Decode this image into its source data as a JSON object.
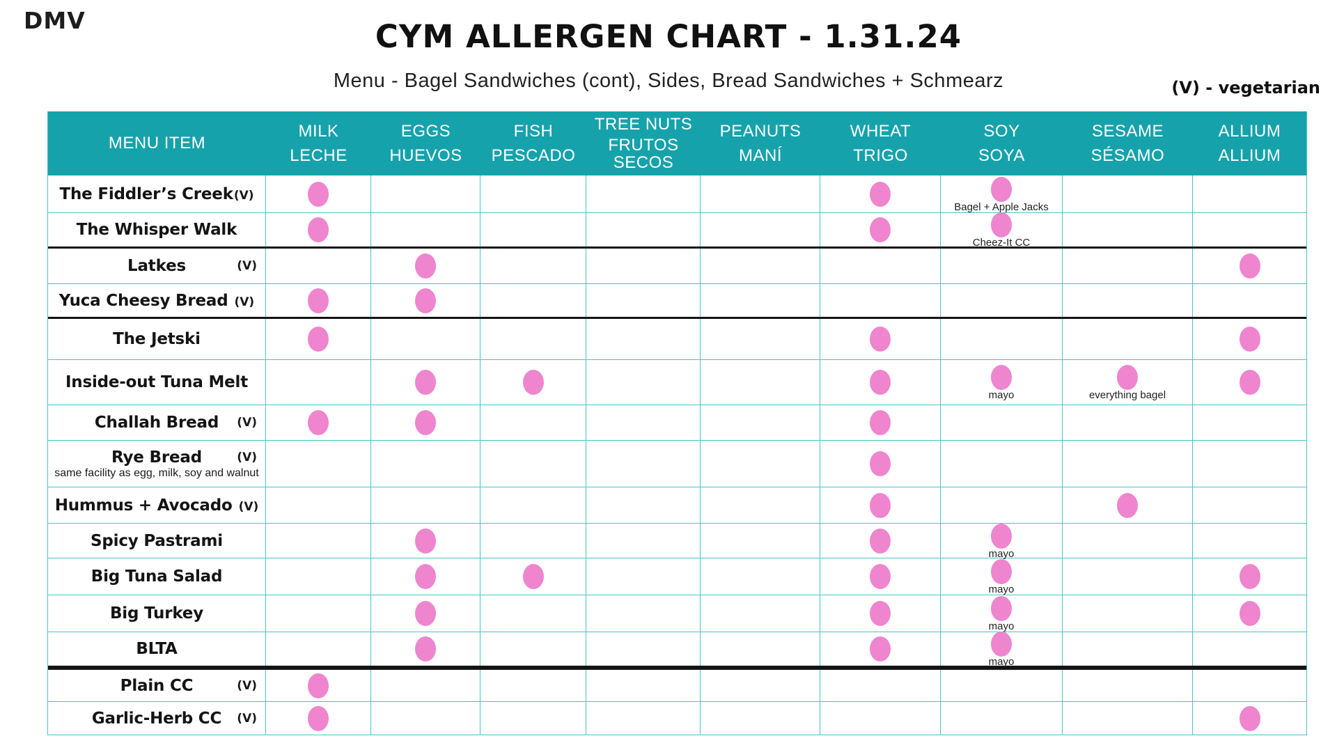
{
  "page": {
    "corner_label": "DMV",
    "title": "CYM ALLERGEN CHART - 1.31.24",
    "subtitle": "Menu - Bagel Sandwiches (cont), Sides, Bread Sandwiches + Schmearz",
    "legend": "(V) - vegetarian"
  },
  "colors": {
    "header_bg": "#16a2ab",
    "grid_line": "#45c6c8",
    "dot": "#ee85ce",
    "divider": "#141414"
  },
  "chart_data": {
    "type": "table",
    "title": "CYM ALLERGEN CHART - 1.31.24",
    "subtitle": "Menu - Bagel Sandwiches (cont), Sides, Bread Sandwiches + Schmearz",
    "menu_header": "MENU ITEM",
    "allergens": [
      {
        "key": "milk",
        "en": "MILK",
        "es": "LECHE"
      },
      {
        "key": "eggs",
        "en": "EGGS",
        "es": "HUEVOS"
      },
      {
        "key": "fish",
        "en": "FISH",
        "es": "PESCADO"
      },
      {
        "key": "tree_nuts",
        "en": "TREE NUTS",
        "es": "FRUTOS SECOS"
      },
      {
        "key": "peanuts",
        "en": "PEANUTS",
        "es": "MANÍ"
      },
      {
        "key": "wheat",
        "en": "WHEAT",
        "es": "TRIGO"
      },
      {
        "key": "soy",
        "en": "SOY",
        "es": "SOYA"
      },
      {
        "key": "sesame",
        "en": "SESAME",
        "es": "SÉSAMO"
      },
      {
        "key": "allium",
        "en": "ALLIUM",
        "es": "ALLIUM"
      }
    ],
    "rows": [
      {
        "name": "The Fiddler’s Creek",
        "veg": "(V)",
        "veg_style": "tight",
        "subnote": "",
        "dots": [
          "milk",
          "wheat",
          "soy"
        ],
        "cell_notes": {
          "soy": "Bagel + Apple Jacks"
        },
        "divider_after": "thin"
      },
      {
        "name": "The Whisper Walk",
        "veg": "",
        "veg_style": "",
        "subnote": "",
        "dots": [
          "milk",
          "wheat",
          "soy"
        ],
        "cell_notes": {
          "soy": "Cheez-It CC"
        },
        "divider_after": "black"
      },
      {
        "name": "Latkes",
        "veg": "(V)",
        "veg_style": "right",
        "subnote": "",
        "dots": [
          "eggs",
          "allium"
        ],
        "cell_notes": {},
        "divider_after": "thin"
      },
      {
        "name": "Yuca Cheesy Bread",
        "veg": "(V)",
        "veg_style": "inline",
        "subnote": "",
        "dots": [
          "milk",
          "eggs"
        ],
        "cell_notes": {},
        "divider_after": "black"
      },
      {
        "name": "The Jetski",
        "veg": "",
        "veg_style": "",
        "subnote": "",
        "dots": [
          "milk",
          "wheat",
          "allium"
        ],
        "cell_notes": {},
        "divider_after": "thin"
      },
      {
        "name": "Inside-out Tuna Melt",
        "veg": "",
        "veg_style": "",
        "subnote": "",
        "dots": [
          "eggs",
          "fish",
          "wheat",
          "soy",
          "sesame",
          "allium"
        ],
        "cell_notes": {
          "soy": "mayo",
          "sesame": "everything bagel"
        },
        "divider_after": "thin"
      },
      {
        "name": "Challah Bread",
        "veg": "(V)",
        "veg_style": "right",
        "subnote": "",
        "dots": [
          "milk",
          "eggs",
          "wheat"
        ],
        "cell_notes": {},
        "divider_after": "thin"
      },
      {
        "name": "Rye Bread",
        "veg": "(V)",
        "veg_style": "right",
        "subnote": "same facility as egg, milk, soy and walnut",
        "dots": [
          "wheat"
        ],
        "cell_notes": {},
        "divider_after": "thin"
      },
      {
        "name": "Hummus + Avocado",
        "veg": "(V)",
        "veg_style": "inline",
        "subnote": "",
        "dots": [
          "wheat",
          "sesame"
        ],
        "cell_notes": {},
        "divider_after": "thin"
      },
      {
        "name": "Spicy Pastrami",
        "veg": "",
        "veg_style": "",
        "subnote": "",
        "dots": [
          "eggs",
          "wheat",
          "soy"
        ],
        "cell_notes": {
          "soy": "mayo"
        },
        "divider_after": "thin"
      },
      {
        "name": "Big Tuna Salad",
        "veg": "",
        "veg_style": "",
        "subnote": "",
        "dots": [
          "eggs",
          "fish",
          "wheat",
          "soy",
          "allium"
        ],
        "cell_notes": {
          "soy": "mayo"
        },
        "divider_after": "thin"
      },
      {
        "name": "Big Turkey",
        "veg": "",
        "veg_style": "",
        "subnote": "",
        "dots": [
          "eggs",
          "wheat",
          "soy",
          "allium"
        ],
        "cell_notes": {
          "soy": "mayo"
        },
        "divider_after": "thin"
      },
      {
        "name": "BLTA",
        "veg": "",
        "veg_style": "",
        "subnote": "",
        "dots": [
          "eggs",
          "wheat",
          "soy"
        ],
        "cell_notes": {
          "soy": "mayo"
        },
        "divider_after": "heavy"
      },
      {
        "name": "Plain CC",
        "veg": "(V)",
        "veg_style": "right",
        "subnote": "",
        "dots": [
          "milk"
        ],
        "cell_notes": {},
        "divider_after": "thin"
      },
      {
        "name": "Garlic-Herb CC",
        "veg": "(V)",
        "veg_style": "right",
        "subnote": "",
        "dots": [
          "milk",
          "allium"
        ],
        "cell_notes": {},
        "divider_after": "none"
      }
    ]
  }
}
